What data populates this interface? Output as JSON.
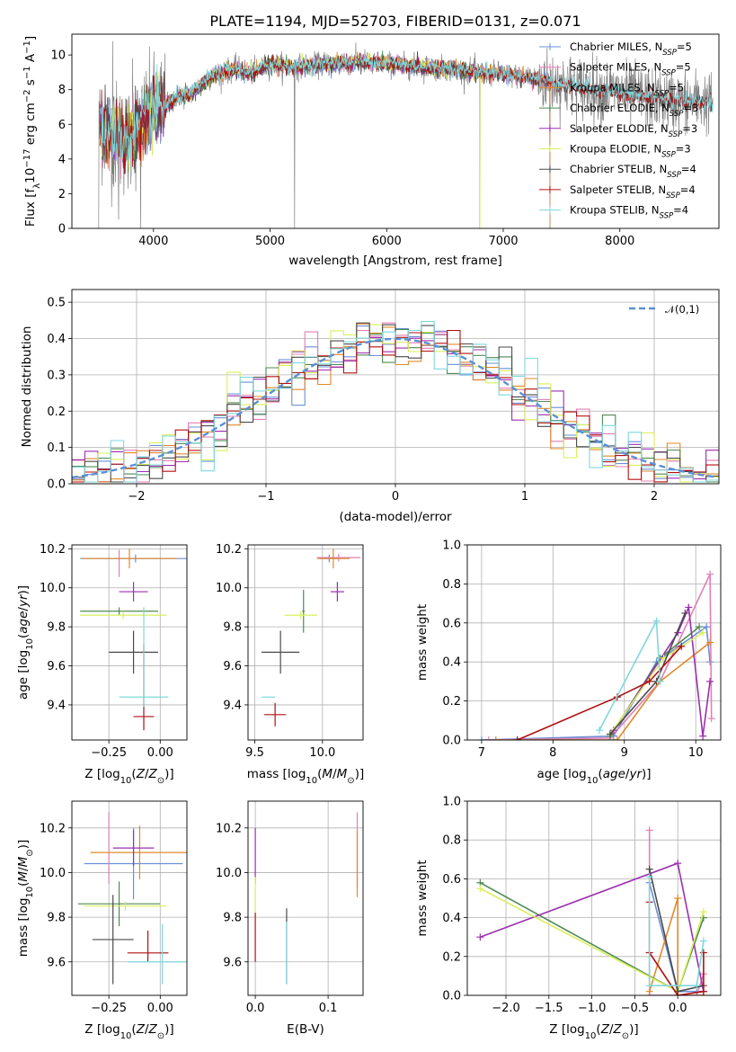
{
  "figure": {
    "title": "PLATE=1194, MJD=52703, FIBERID=0131, z=0.071",
    "colors": {
      "Chabrier MILES": "#6a8fd8",
      "Salpeter MILES": "#e47fb5",
      "Kroupa MILES": "#e08a2a",
      "Chabrier ELODIE": "#4f8a55",
      "Salpeter ELODIE": "#9b2fb0",
      "Kroupa ELODIE": "#d9ef5a",
      "Chabrier STELIB": "#4a4a4a",
      "Salpeter STELIB": "#b01010",
      "Kroupa STELIB": "#7fd8dc"
    }
  },
  "chart_data": [
    {
      "id": "spectrum",
      "type": "line",
      "xlabel": "wavelength [Angstrom, rest frame]",
      "ylabel": "Flux [f_λ10^-17 erg cm^-2 s^-1 A^-1]",
      "xlim": [
        3300,
        8850
      ],
      "ylim": [
        0,
        11.2
      ],
      "xticks": [
        4000,
        5000,
        6000,
        7000,
        8000
      ],
      "yticks": [
        0,
        2,
        4,
        6,
        8,
        10
      ],
      "legend_position": "right",
      "legend": [
        {
          "model": "Chabrier MILES",
          "label": "Chabrier MILES, N",
          "sub": "SSP",
          "tail": "=5"
        },
        {
          "model": "Salpeter MILES",
          "label": "Salpeter MILES, N",
          "sub": "SSP",
          "tail": "=5"
        },
        {
          "model": "Kroupa MILES",
          "label": "Kroupa MILES, N",
          "sub": "SSP",
          "tail": "=5"
        },
        {
          "model": "Chabrier ELODIE",
          "label": "Chabrier ELODIE, N",
          "sub": "SSP",
          "tail": "=3"
        },
        {
          "model": "Salpeter ELODIE",
          "label": "Salpeter ELODIE, N",
          "sub": "SSP",
          "tail": "=3"
        },
        {
          "model": "Kroupa ELODIE",
          "label": "Kroupa ELODIE, N",
          "sub": "SSP",
          "tail": "=3"
        },
        {
          "model": "Chabrier STELIB",
          "label": "Chabrier STELIB, N",
          "sub": "SSP",
          "tail": "=4"
        },
        {
          "model": "Salpeter STELIB",
          "label": "Salpeter STELIB, N",
          "sub": "SSP",
          "tail": "=4"
        },
        {
          "model": "Kroupa STELIB",
          "label": "Kroupa STELIB, N",
          "sub": "SSP",
          "tail": "=4"
        }
      ],
      "data_series": {
        "name": "data",
        "color": "#808080"
      },
      "continuum_knots": [
        [
          3550,
          5.8
        ],
        [
          3700,
          5.2
        ],
        [
          3800,
          5.0
        ],
        [
          3900,
          5.9
        ],
        [
          4000,
          6.8
        ],
        [
          4100,
          7.0
        ],
        [
          4200,
          7.6
        ],
        [
          4300,
          7.7
        ],
        [
          4400,
          8.2
        ],
        [
          4500,
          8.8
        ],
        [
          4700,
          9.2
        ],
        [
          4860,
          9.0
        ],
        [
          5000,
          9.5
        ],
        [
          5200,
          9.3
        ],
        [
          5500,
          9.5
        ],
        [
          5800,
          9.6
        ],
        [
          6000,
          9.5
        ],
        [
          6300,
          9.3
        ],
        [
          6560,
          9.2
        ],
        [
          6800,
          9.0
        ],
        [
          7000,
          8.9
        ],
        [
          7300,
          8.6
        ],
        [
          7600,
          8.2
        ],
        [
          8000,
          7.8
        ],
        [
          8500,
          7.3
        ]
      ],
      "spikes": [
        [
          3530,
          0
        ],
        [
          3650,
          10.8
        ],
        [
          3700,
          0.5
        ],
        [
          3820,
          9.8
        ],
        [
          3890,
          0
        ],
        [
          4020,
          9.0
        ],
        [
          5210,
          0
        ],
        [
          5400,
          9.8
        ],
        [
          5880,
          8.9
        ],
        [
          6560,
          9.7
        ],
        [
          6800,
          0
        ],
        [
          7400,
          0
        ],
        [
          7840,
          5.9
        ]
      ]
    },
    {
      "id": "residual-histogram",
      "type": "histogram",
      "xlabel": "(data-model)/error",
      "ylabel": "Normed distribution",
      "xlim": [
        -2.5,
        2.5
      ],
      "ylim": [
        0,
        0.535
      ],
      "xticks": [
        -2,
        -1,
        0,
        1,
        2
      ],
      "yticks": [
        0.0,
        0.1,
        0.2,
        0.3,
        0.4,
        0.5
      ],
      "bin_width": 0.1,
      "reference": {
        "name": "𝒩(0,1)",
        "mu": 0,
        "sigma": 1,
        "color": "#5b8fd6",
        "style": "dashed"
      },
      "legend_position": "top-right"
    },
    {
      "id": "age-vs-metallicity",
      "type": "scatter",
      "xlabel": "Z [log10(Z/Z⊙)]",
      "ylabel": "age [log10(age/yr)]",
      "xlim": [
        -0.43,
        0.13
      ],
      "ylim": [
        9.22,
        10.22
      ],
      "xticks": [
        -0.25,
        0.0
      ],
      "yticks": [
        9.4,
        9.6,
        9.8,
        10.0,
        10.2
      ],
      "points": [
        {
          "model": "Chabrier MILES",
          "x": -0.12,
          "y": 10.15,
          "xerr": [
            0.27,
            0.27
          ],
          "yerr": [
            0.02,
            0.02
          ]
        },
        {
          "model": "Salpeter MILES",
          "x": -0.2,
          "y": 10.155,
          "xerr": [
            0.0,
            0.0
          ],
          "yerr": [
            0.1,
            0.04
          ]
        },
        {
          "model": "Kroupa MILES",
          "x": -0.15,
          "y": 10.15,
          "xerr": [
            0.23,
            0.23
          ],
          "yerr": [
            0.05,
            0.05
          ]
        },
        {
          "model": "Chabrier ELODIE",
          "x": -0.2,
          "y": 9.88,
          "xerr": [
            0.19,
            0.19
          ],
          "yerr": [
            0.02,
            0.02
          ]
        },
        {
          "model": "Salpeter ELODIE",
          "x": -0.13,
          "y": 9.98,
          "xerr": [
            0.07,
            0.07
          ],
          "yerr": [
            0.05,
            0.05
          ]
        },
        {
          "model": "Kroupa ELODIE",
          "x": -0.18,
          "y": 9.86,
          "xerr": [
            0.21,
            0.21
          ],
          "yerr": [
            0.02,
            0.02
          ]
        },
        {
          "model": "Chabrier STELIB",
          "x": -0.13,
          "y": 9.67,
          "xerr": [
            0.12,
            0.12
          ],
          "yerr": [
            0.11,
            0.11
          ]
        },
        {
          "model": "Salpeter STELIB",
          "x": -0.08,
          "y": 9.34,
          "xerr": [
            0.05,
            0.05
          ],
          "yerr": [
            0.07,
            0.37
          ]
        },
        {
          "model": "Kroupa STELIB",
          "x": -0.08,
          "y": 9.44,
          "xerr": [
            0.12,
            0.12
          ],
          "yerr": [
            0.05,
            0.46
          ]
        }
      ]
    },
    {
      "id": "age-vs-mass",
      "type": "scatter",
      "xlabel": "mass [log10(M/M⊙)]",
      "ylabel": "",
      "xlim": [
        9.45,
        10.3
      ],
      "ylim": [
        9.22,
        10.22
      ],
      "xticks": [
        9.5,
        10.0
      ],
      "yticks": [
        9.4,
        9.6,
        9.8,
        10.0,
        10.2
      ],
      "points": [
        {
          "model": "Chabrier MILES",
          "x": 10.05,
          "y": 10.15,
          "xerr": [
            0.07,
            0.07
          ],
          "yerr": [
            0.02,
            0.02
          ]
        },
        {
          "model": "Salpeter MILES",
          "x": 10.12,
          "y": 10.155,
          "xerr": [
            0.16,
            0.16
          ],
          "yerr": [
            0.02,
            0.02
          ]
        },
        {
          "model": "Kroupa MILES",
          "x": 10.08,
          "y": 10.15,
          "xerr": [
            0.12,
            0.12
          ],
          "yerr": [
            0.05,
            0.05
          ]
        },
        {
          "model": "Chabrier ELODIE",
          "x": 9.86,
          "y": 9.88,
          "xerr": [
            0.01,
            0.01
          ],
          "yerr": [
            0.11,
            0.11
          ]
        },
        {
          "model": "Salpeter ELODIE",
          "x": 10.11,
          "y": 9.98,
          "xerr": [
            0.05,
            0.05
          ],
          "yerr": [
            0.05,
            0.05
          ]
        },
        {
          "model": "Kroupa ELODIE",
          "x": 9.84,
          "y": 9.86,
          "xerr": [
            0.12,
            0.12
          ],
          "yerr": [
            0.02,
            0.02
          ]
        },
        {
          "model": "Chabrier STELIB",
          "x": 9.69,
          "y": 9.67,
          "xerr": [
            0.14,
            0.14
          ],
          "yerr": [
            0.11,
            0.11
          ]
        },
        {
          "model": "Salpeter STELIB",
          "x": 9.65,
          "y": 9.35,
          "xerr": [
            0.08,
            0.08
          ],
          "yerr": [
            0.06,
            0.06
          ]
        },
        {
          "model": "Kroupa STELIB",
          "x": 9.6,
          "y": 9.44,
          "xerr": [
            0.05,
            0.05
          ],
          "yerr": [
            0.0,
            0.0
          ]
        }
      ]
    },
    {
      "id": "mass-weight-vs-age",
      "type": "line",
      "xlabel": "age [log10(age/yr)]",
      "ylabel": "mass weight",
      "xlim": [
        6.8,
        10.35
      ],
      "ylim": [
        0,
        1
      ],
      "xticks": [
        7,
        8,
        9,
        10
      ],
      "yticks": [
        0.0,
        0.2,
        0.4,
        0.6,
        0.8,
        1.0
      ],
      "series": [
        {
          "model": "Chabrier MILES",
          "x": [
            7.0,
            8.85,
            9.45,
            10.15,
            10.2
          ],
          "y": [
            0.0,
            0.02,
            0.4,
            0.58,
            0.4
          ]
        },
        {
          "model": "Salpeter MILES",
          "x": [
            7.1,
            8.8,
            9.5,
            10.2,
            10.22
          ],
          "y": [
            0.0,
            0.01,
            0.3,
            0.85,
            0.11
          ]
        },
        {
          "model": "Kroupa MILES",
          "x": [
            7.2,
            8.9,
            9.5,
            10.2
          ],
          "y": [
            0.0,
            0.0,
            0.3,
            0.5
          ]
        },
        {
          "model": "Chabrier ELODIE",
          "x": [
            8.8,
            9.5,
            10.05
          ],
          "y": [
            0.02,
            0.42,
            0.58
          ]
        },
        {
          "model": "Salpeter ELODIE",
          "x": [
            8.85,
            9.75,
            9.9,
            10.1,
            10.2
          ],
          "y": [
            0.05,
            0.55,
            0.68,
            0.02,
            0.3
          ]
        },
        {
          "model": "Kroupa ELODIE",
          "x": [
            8.8,
            9.55,
            10.1
          ],
          "y": [
            0.03,
            0.42,
            0.55
          ]
        },
        {
          "model": "Chabrier STELIB",
          "x": [
            8.8,
            9.45,
            9.85
          ],
          "y": [
            0.03,
            0.3,
            0.65
          ]
        },
        {
          "model": "Salpeter STELIB",
          "x": [
            7.5,
            8.9,
            9.35,
            9.8
          ],
          "y": [
            0.0,
            0.22,
            0.3,
            0.48
          ]
        },
        {
          "model": "Kroupa STELIB",
          "x": [
            8.65,
            9.45,
            9.5
          ],
          "y": [
            0.05,
            0.61,
            0.3
          ]
        }
      ]
    },
    {
      "id": "mass-vs-metallicity",
      "type": "scatter",
      "xlabel": "Z [log10(Z/Z⊙)]",
      "ylabel": "mass [log10(M/M⊙)]",
      "xlim": [
        -0.43,
        0.13
      ],
      "ylim": [
        9.45,
        10.32
      ],
      "xticks": [
        -0.25,
        0.0
      ],
      "yticks": [
        9.6,
        9.8,
        10.0,
        10.2
      ],
      "points": [
        {
          "model": "Chabrier MILES",
          "x": -0.13,
          "y": 10.04,
          "xerr": [
            0.24,
            0.24
          ],
          "yerr": [
            0.16,
            0.16
          ]
        },
        {
          "model": "Salpeter MILES",
          "x": -0.25,
          "y": 10.11,
          "xerr": [
            0.0,
            0.0
          ],
          "yerr": [
            0.16,
            0.16
          ]
        },
        {
          "model": "Kroupa MILES",
          "x": -0.1,
          "y": 10.09,
          "xerr": [
            0.24,
            0.24
          ],
          "yerr": [
            0.12,
            0.12
          ]
        },
        {
          "model": "Chabrier ELODIE",
          "x": -0.2,
          "y": 9.86,
          "xerr": [
            0.2,
            0.2
          ],
          "yerr": [
            0.1,
            0.1
          ]
        },
        {
          "model": "Salpeter ELODIE",
          "x": -0.13,
          "y": 10.11,
          "xerr": [
            0.1,
            0.1
          ],
          "yerr": [
            0.08,
            0.08
          ]
        },
        {
          "model": "Kroupa ELODIE",
          "x": -0.17,
          "y": 9.85,
          "xerr": [
            0.2,
            0.2
          ],
          "yerr": [
            0.02,
            0.02
          ]
        },
        {
          "model": "Chabrier STELIB",
          "x": -0.23,
          "y": 9.7,
          "xerr": [
            0.1,
            0.1
          ],
          "yerr": [
            0.2,
            0.2
          ]
        },
        {
          "model": "Salpeter STELIB",
          "x": -0.06,
          "y": 9.64,
          "xerr": [
            0.1,
            0.1
          ],
          "yerr": [
            0.04,
            0.1
          ]
        },
        {
          "model": "Kroupa STELIB",
          "x": 0.01,
          "y": 9.6,
          "xerr": [
            0.17,
            0.17
          ],
          "yerr": [
            0.1,
            0.17
          ]
        }
      ]
    },
    {
      "id": "mass-vs-extinction",
      "type": "scatter",
      "xlabel": "E(B-V)",
      "ylabel": "",
      "xlim": [
        -0.01,
        0.148
      ],
      "ylim": [
        9.45,
        10.32
      ],
      "xticks": [
        0.0,
        0.1
      ],
      "yticks": [
        9.6,
        9.8,
        10.0,
        10.2
      ],
      "points": [
        {
          "model": "Salpeter MILES",
          "x": 0.14,
          "y": 10.1,
          "xerr": [
            0,
            0
          ],
          "yerr": [
            0.17,
            0.17
          ]
        },
        {
          "model": "Kroupa MILES",
          "x": 0.14,
          "y": 10.04,
          "xerr": [
            0,
            0
          ],
          "yerr": [
            0.15,
            0.15
          ]
        },
        {
          "model": "Salpeter ELODIE",
          "x": 0.0,
          "y": 10.05,
          "xerr": [
            0,
            0
          ],
          "yerr": [
            0.1,
            0.15
          ]
        },
        {
          "model": "Kroupa ELODIE",
          "x": 0.0,
          "y": 9.9,
          "xerr": [
            0,
            0
          ],
          "yerr": [
            0.12,
            0.08
          ]
        },
        {
          "model": "Chabrier STELIB",
          "x": 0.043,
          "y": 9.7,
          "xerr": [
            0,
            0
          ],
          "yerr": [
            0.2,
            0.14
          ]
        },
        {
          "model": "Salpeter STELIB",
          "x": 0.0,
          "y": 9.7,
          "xerr": [
            0,
            0
          ],
          "yerr": [
            0.1,
            0.12
          ]
        },
        {
          "model": "Kroupa STELIB",
          "x": 0.043,
          "y": 9.64,
          "xerr": [
            0,
            0
          ],
          "yerr": [
            0.14,
            0.14
          ]
        }
      ]
    },
    {
      "id": "mass-weight-vs-metallicity",
      "type": "line",
      "xlabel": "Z [log10(Z/Z⊙)]",
      "ylabel": "mass weight",
      "xlim": [
        -2.45,
        0.5
      ],
      "ylim": [
        0,
        1
      ],
      "xticks": [
        -2.0,
        -1.5,
        -1.0,
        -0.5,
        0.0
      ],
      "yticks": [
        0.0,
        0.2,
        0.4,
        0.6,
        0.8,
        1.0
      ],
      "series": [
        {
          "model": "Chabrier MILES",
          "x": [
            -0.33,
            0.0,
            0.22,
            0.3
          ],
          "y": [
            0.58,
            0.02,
            0.02,
            0.02
          ]
        },
        {
          "model": "Salpeter MILES",
          "x": [
            -0.33,
            -0.33,
            0.22,
            0.3
          ],
          "y": [
            0.85,
            0.0,
            0.0,
            0.11
          ]
        },
        {
          "model": "Kroupa MILES",
          "x": [
            -0.33,
            0.0,
            0.0,
            0.3
          ],
          "y": [
            0.02,
            0.5,
            0.0,
            0.0
          ]
        },
        {
          "model": "Chabrier ELODIE",
          "x": [
            -2.3,
            0.0,
            0.3
          ],
          "y": [
            0.58,
            0.02,
            0.4
          ]
        },
        {
          "model": "Salpeter ELODIE",
          "x": [
            -2.3,
            0.0,
            0.3
          ],
          "y": [
            0.3,
            0.68,
            0.02
          ]
        },
        {
          "model": "Kroupa ELODIE",
          "x": [
            -2.3,
            0.0,
            0.3
          ],
          "y": [
            0.55,
            0.02,
            0.43
          ]
        },
        {
          "model": "Chabrier STELIB",
          "x": [
            -0.33,
            0.0,
            0.3
          ],
          "y": [
            0.65,
            0.02,
            0.05
          ]
        },
        {
          "model": "Salpeter STELIB",
          "x": [
            -0.33,
            -0.33,
            0.0,
            0.3,
            0.3
          ],
          "y": [
            0.48,
            0.22,
            0.0,
            0.02,
            0.22
          ]
        },
        {
          "model": "Kroupa STELIB",
          "x": [
            -0.33,
            -0.33,
            0.22,
            0.3
          ],
          "y": [
            0.61,
            0.05,
            0.05,
            0.28
          ]
        }
      ]
    }
  ]
}
